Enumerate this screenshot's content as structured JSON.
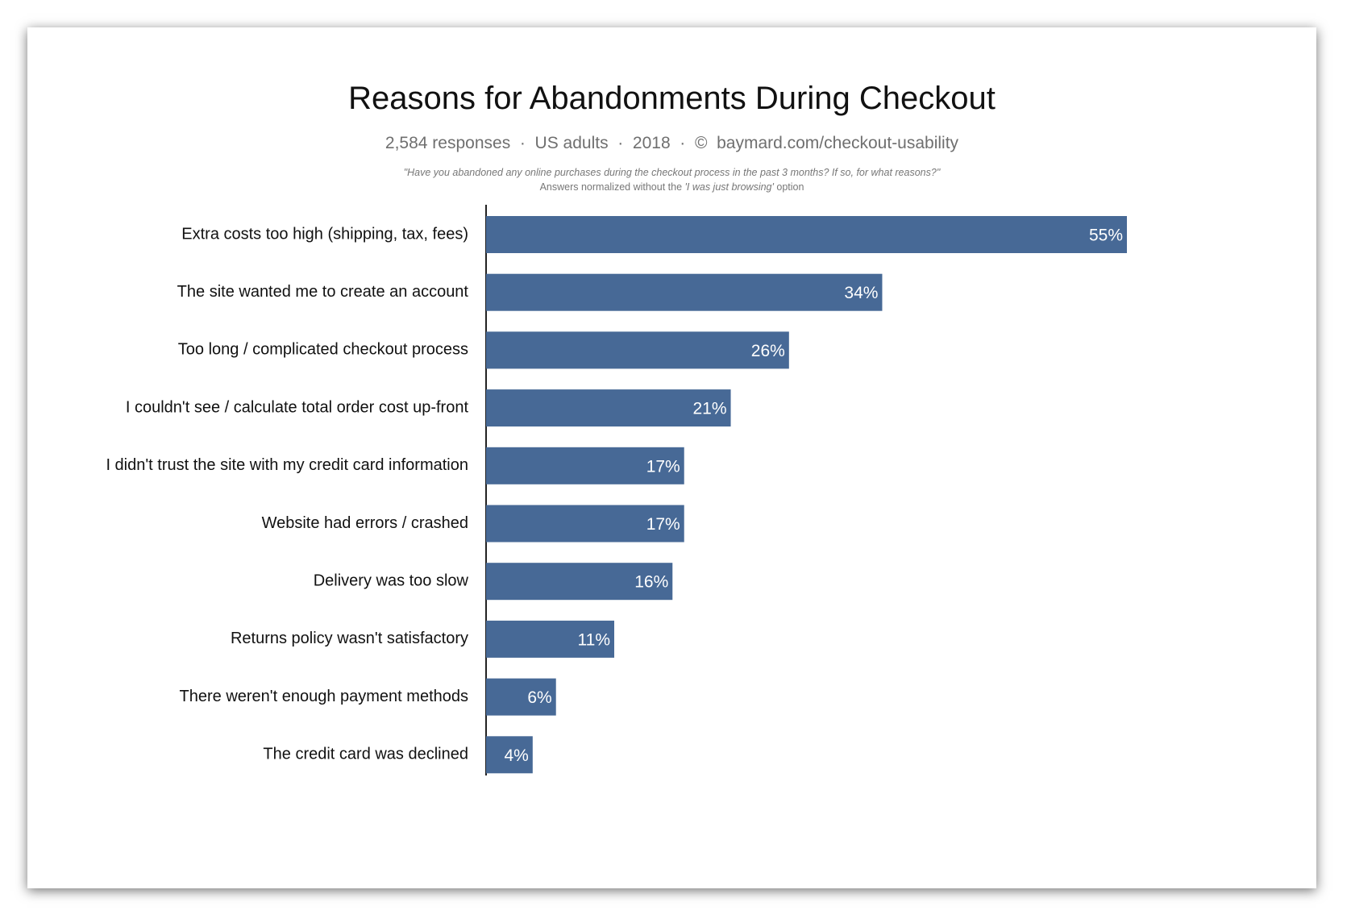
{
  "chart_data": {
    "type": "bar",
    "orientation": "horizontal",
    "title": "Reasons for Abandonments During Checkout",
    "subtitle": "2,584 responses  ·  US adults  ·  2018  ·  ©  baymard.com/checkout-usability",
    "question": "\"Have you abandoned any online purchases during the checkout process in the past 3 months? If so, for what reasons?\"",
    "note": {
      "before": "Answers normalized without the ",
      "emphasis": "'I was just browsing'",
      "after": " option"
    },
    "categories": [
      "Extra costs too high (shipping, tax, fees)",
      "The site wanted me to create an account",
      "Too long / complicated checkout process",
      "I couldn't see / calculate total order cost up-front",
      "I didn't trust the site with my credit card information",
      "Website had errors / crashed",
      "Delivery was too slow",
      "Returns policy wasn't satisfactory",
      "There weren't enough payment methods",
      "The credit card was declined"
    ],
    "values": [
      55,
      34,
      26,
      21,
      17,
      17,
      16,
      11,
      6,
      4
    ],
    "value_labels": [
      "55%",
      "34%",
      "26%",
      "21%",
      "17%",
      "17%",
      "16%",
      "11%",
      "6%",
      "4%"
    ],
    "unit": "%",
    "xlim": [
      0,
      55
    ],
    "grid": false,
    "legend": "none",
    "bar_color": "#476996"
  }
}
